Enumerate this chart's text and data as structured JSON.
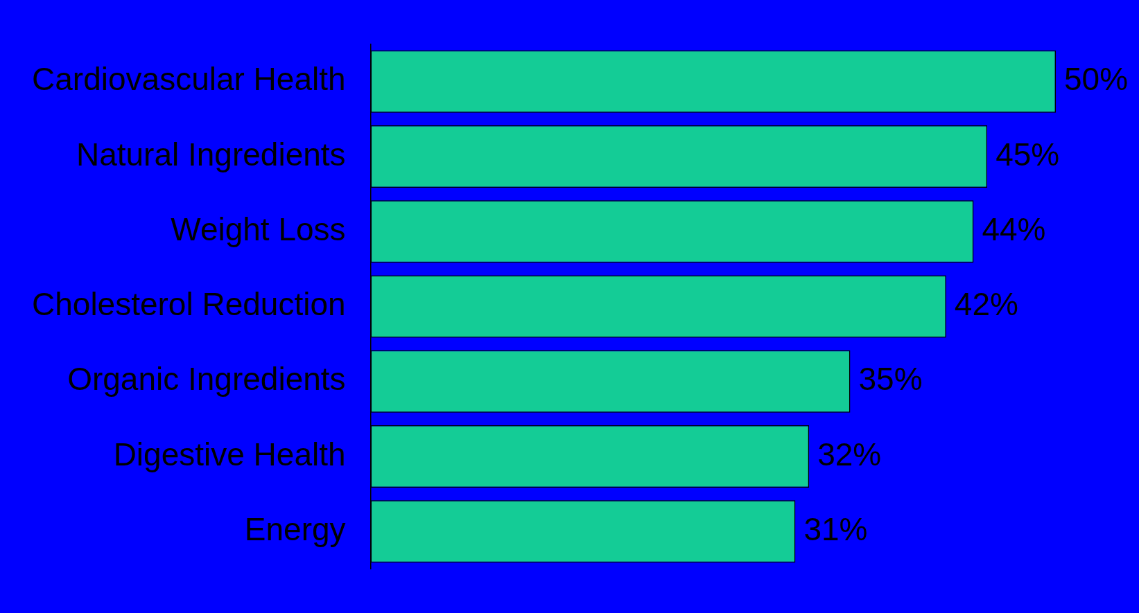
{
  "chart_data": {
    "type": "bar",
    "orientation": "horizontal",
    "categories": [
      "Cardiovascular Health",
      "Natural Ingredients",
      "Weight Loss",
      "Cholesterol Reduction",
      "Organic Ingredients",
      "Digestive Health",
      "Energy"
    ],
    "values": [
      50,
      45,
      44,
      42,
      35,
      32,
      31
    ],
    "value_labels": [
      "50%",
      "45%",
      "44%",
      "42%",
      "35%",
      "32%",
      "31%"
    ],
    "color": "#14cc96",
    "legend": false
  }
}
